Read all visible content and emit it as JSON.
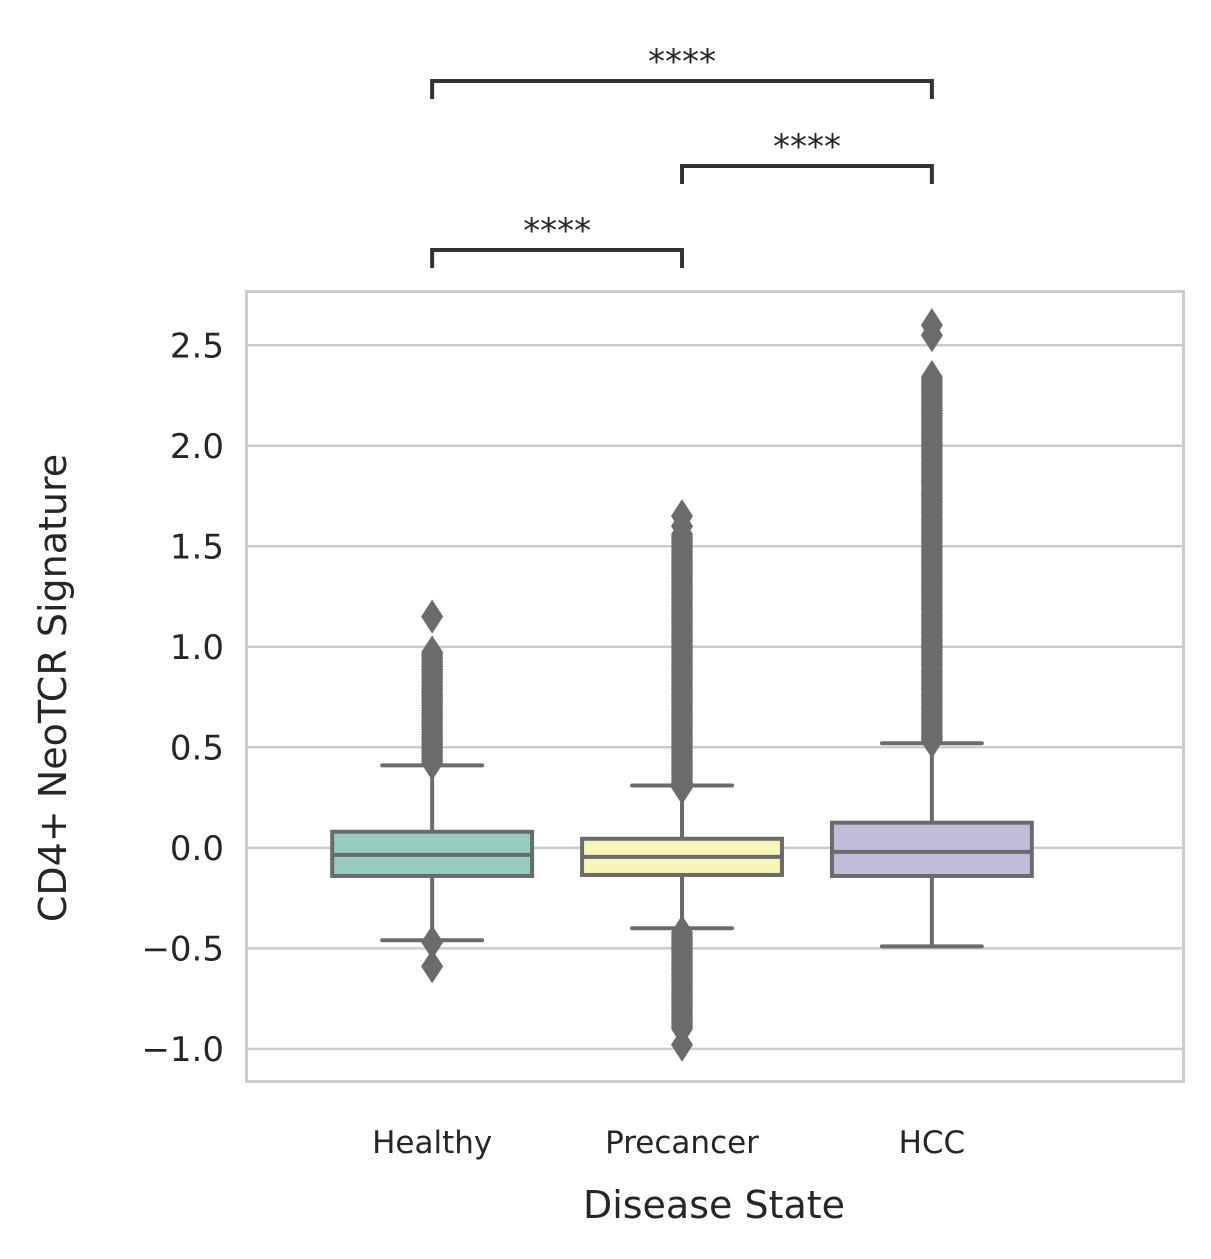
{
  "chart_data": {
    "type": "box",
    "title": "",
    "xlabel": "Disease State",
    "ylabel": "CD4+ NeoTCR Signature",
    "ylim": [
      -1.165,
      2.77
    ],
    "xlim": [
      -0.745,
      3.005
    ],
    "grid": "horizontal",
    "yticks": [
      -1.0,
      -0.5,
      0.0,
      0.5,
      1.0,
      1.5,
      2.0,
      2.5
    ],
    "ytick_labels": [
      "−1.0",
      "−0.5",
      "0.0",
      "0.5",
      "1.0",
      "1.5",
      "2.0",
      "2.5"
    ],
    "categories": [
      "Healthy",
      "Precancer",
      "HCC"
    ],
    "boxes": [
      {
        "name": "Healthy",
        "color": "#96cbc0",
        "q1": -0.14,
        "median": -0.035,
        "q3": 0.08,
        "whisker_low": -0.46,
        "whisker_high": 0.41,
        "outliers": {
          "dense_ranges": [
            [
              0.42,
              0.98
            ]
          ],
          "points": [
            1.15,
            -0.47,
            -0.59
          ]
        }
      },
      {
        "name": "Precancer",
        "color": "#f7f6b8",
        "q1": -0.135,
        "median": -0.045,
        "q3": 0.045,
        "whisker_low": -0.4,
        "whisker_high": 0.31,
        "outliers": {
          "dense_ranges": [
            [
              0.3,
              1.56
            ],
            [
              -0.9,
              -0.42
            ]
          ],
          "points": [
            1.6,
            1.65,
            -0.98
          ]
        }
      },
      {
        "name": "HCC",
        "color": "#c1bdd8",
        "q1": -0.14,
        "median": -0.02,
        "q3": 0.125,
        "whisker_low": -0.49,
        "whisker_high": 0.52,
        "outliers": {
          "dense_ranges": [
            [
              0.53,
              2.35
            ]
          ],
          "points": [
            2.55,
            2.6
          ]
        }
      }
    ],
    "significance": [
      {
        "groups": [
          "Healthy",
          "Precancer"
        ],
        "label": "****"
      },
      {
        "groups": [
          "Precancer",
          "HCC"
        ],
        "label": "****"
      },
      {
        "groups": [
          "Healthy",
          "HCC"
        ],
        "label": "****"
      }
    ],
    "line_color": "#6b6b6b"
  }
}
